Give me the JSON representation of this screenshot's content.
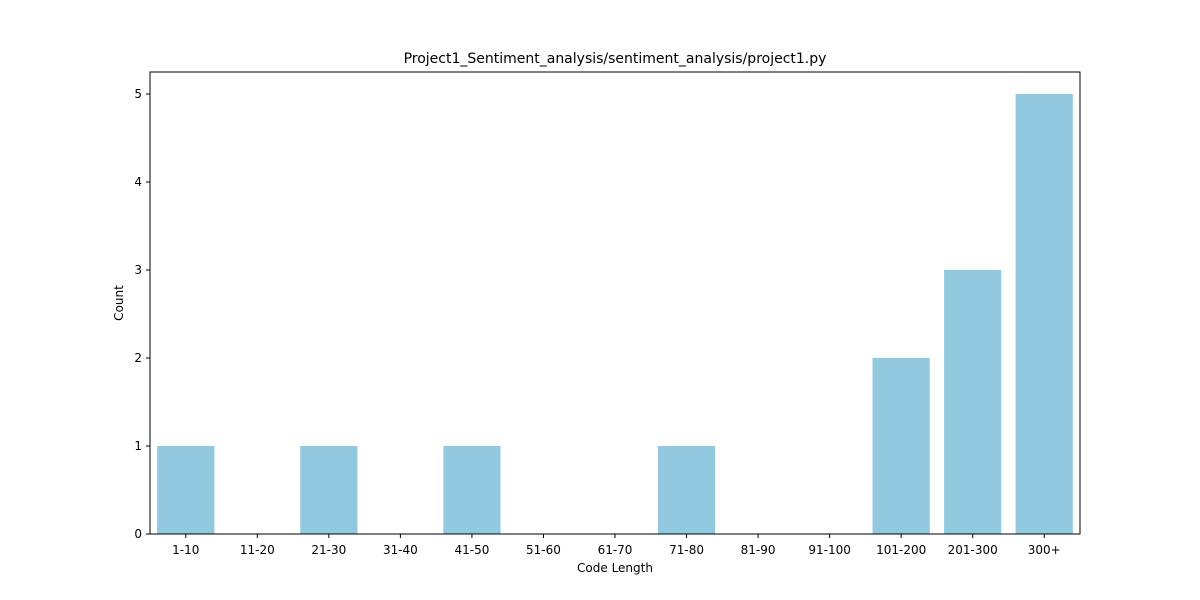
{
  "chart_data": {
    "type": "bar",
    "title": "Project1_Sentiment_analysis/sentiment_analysis/project1.py",
    "xlabel": "Code Length",
    "ylabel": "Count",
    "categories": [
      "1-10",
      "11-20",
      "21-30",
      "31-40",
      "41-50",
      "51-60",
      "61-70",
      "71-80",
      "81-90",
      "91-100",
      "101-200",
      "201-300",
      "300+"
    ],
    "values": [
      1,
      0,
      1,
      0,
      1,
      0,
      0,
      1,
      0,
      0,
      2,
      3,
      5
    ],
    "ylim": [
      0,
      5.25
    ],
    "yticks": [
      0,
      1,
      2,
      3,
      4,
      5
    ],
    "grid": false,
    "bar_color": "#92c9df"
  }
}
